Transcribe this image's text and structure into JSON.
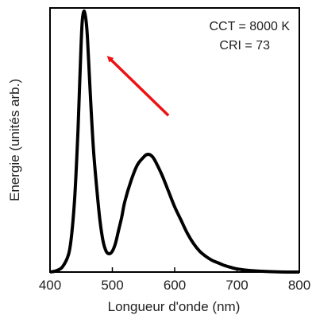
{
  "chart_data": {
    "type": "line",
    "title": "",
    "xlabel": "Longueur d'onde (nm)",
    "ylabel": "Energie (unités arb.)",
    "xlim": [
      400,
      800
    ],
    "ylim": [
      0,
      1.0
    ],
    "x_ticks": [
      "400",
      "500",
      "600",
      "700",
      "800"
    ],
    "y_ticks_labeled": false,
    "grid": false,
    "annotations": [
      "CCT = 8000 K",
      "CRI = 73"
    ],
    "arrow": {
      "color": "#ee1111",
      "from": [
        590,
        0.6
      ],
      "to": [
        495,
        0.82
      ]
    },
    "series": [
      {
        "color": "#000000",
        "x": [
          400,
          410,
          420,
          430,
          435,
          440,
          445,
          448,
          450,
          452,
          455,
          458,
          460,
          463,
          466,
          470,
          475,
          480,
          485,
          490,
          495,
          500,
          505,
          510,
          515,
          520,
          530,
          540,
          550,
          555,
          560,
          565,
          570,
          580,
          590,
          600,
          610,
          620,
          630,
          640,
          650,
          660,
          670,
          680,
          690,
          700,
          720,
          740,
          760,
          780,
          800
        ],
        "y": [
          0.0,
          0.005,
          0.02,
          0.07,
          0.15,
          0.3,
          0.55,
          0.75,
          0.88,
          0.97,
          1.0,
          0.96,
          0.9,
          0.76,
          0.62,
          0.46,
          0.32,
          0.2,
          0.12,
          0.08,
          0.07,
          0.08,
          0.11,
          0.16,
          0.21,
          0.27,
          0.35,
          0.41,
          0.44,
          0.45,
          0.45,
          0.44,
          0.42,
          0.37,
          0.31,
          0.25,
          0.2,
          0.15,
          0.11,
          0.08,
          0.06,
          0.045,
          0.035,
          0.025,
          0.018,
          0.012,
          0.006,
          0.003,
          0.001,
          0.0,
          0.0
        ]
      }
    ]
  }
}
